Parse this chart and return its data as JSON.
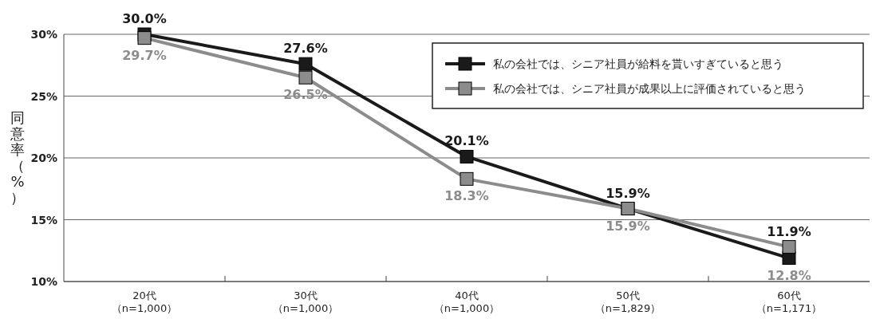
{
  "chart_data": {
    "type": "line",
    "ylabel": "同意率（%）",
    "categories": [
      "20代（n=1,000）",
      "30代（n=1,000）",
      "40代（n=1,000）",
      "50代（n=1,829）",
      "60代（n=1,171）"
    ],
    "series": [
      {
        "name": "私の会社では、シニア社員が給料を貰いすぎていると思う",
        "color": "#1a1a1a",
        "values": [
          30.0,
          27.6,
          20.1,
          15.9,
          11.9
        ],
        "value_labels": [
          "30.0%",
          "27.6%",
          "20.1%",
          "15.9%",
          "11.9%"
        ]
      },
      {
        "name": "私の会社では、シニア社員が成果以上に評価されていると思う",
        "color": "#8c8c8c",
        "values": [
          29.7,
          26.5,
          18.3,
          15.9,
          12.8
        ],
        "value_labels": [
          "29.7%",
          "26.5%",
          "18.3%",
          "15.9%",
          "12.8%"
        ]
      }
    ],
    "ylim": [
      10,
      30
    ],
    "yticks": [
      {
        "value": 10,
        "label": "10%"
      },
      {
        "value": 15,
        "label": "15%"
      },
      {
        "value": 20,
        "label": "20%"
      },
      {
        "value": 25,
        "label": "25%"
      },
      {
        "value": 30,
        "label": "30%"
      }
    ],
    "grid": "y",
    "legend": "top right",
    "marker": "square",
    "line_style": "solid"
  }
}
